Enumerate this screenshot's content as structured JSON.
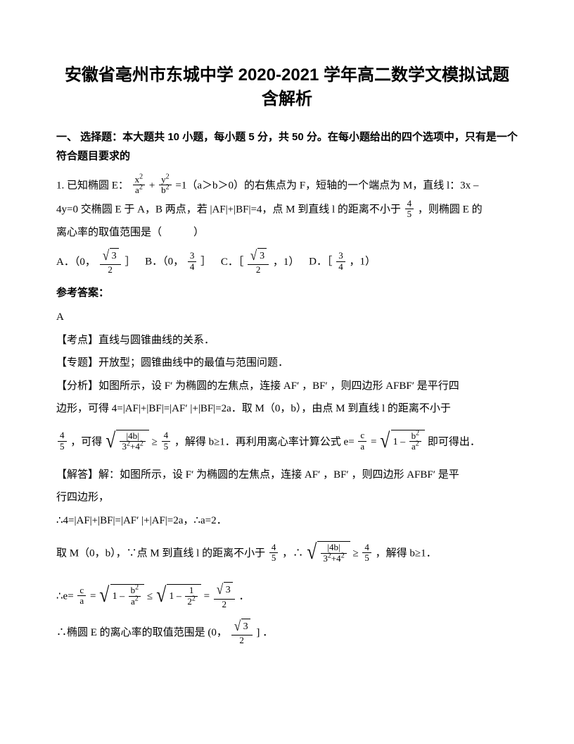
{
  "title": "安徽省亳州市东城中学 2020-2021 学年高二数学文模拟试题含解析",
  "section1": "一、 选择题：本大题共 10 小题，每小题 5 分，共 50 分。在每小题给出的四个选项中，只有是一个符合题目要求的",
  "q1": {
    "line1_a": "1. 已知椭圆 E：",
    "frac1_num": "x",
    "frac1_den": "a",
    "plus": "+",
    "frac2_num": "y",
    "frac2_den": "b",
    "line1_b": "=1（a＞b＞0）的右焦点为 F，短轴的一个端点为 M，直线 l：3x –",
    "line2_a": "4y=0 交椭圆 E 于 A，B 两点，若 |AF|+|BF|=4，点 M 到直线 l 的距离不小于",
    "f45_num": "4",
    "f45_den": "5",
    "line2_b": "，则椭圆 E 的",
    "line3": "离心率的取值范围是（　　　）",
    "optA_a": "A．（0，",
    "optA_b": "］",
    "optB_a": "B．（0，",
    "optB_b": "］",
    "optB_num": "3",
    "optB_den": "4",
    "optC_a": "C．［",
    "optC_b": "，1）",
    "optD_a": "D．［",
    "optD_b": "，1）",
    "optD_num": "3",
    "optD_den": "4",
    "sqrt3_num": "3",
    "opt_den": "2"
  },
  "ans": {
    "head": "参考答案：",
    "letter": "A",
    "kd": "【考点】直线与圆锥曲线的关系．",
    "zt": "【专题】开放型；圆锥曲线中的最值与范围问题．",
    "fx1": "【分析】如图所示，设 F′ 为椭圆的左焦点，连接 AF′ ，BF′ ，则四边形 AFBF′ 是平行四",
    "fx2": "边形，可得 4=|AF|+|BF|=|AF′ |+|BF|=2a．取 M（0，b），由点 M 到直线 l 的距离不小于",
    "fx3_a": "，可得",
    "fx3_b": "，解得 b≥1．再利用离心率计算公式 e=",
    "fx3_c": "即可得出．",
    "rad4b_num": "|4b|",
    "rad4b_den": "3",
    "rad4b_plus": "+4",
    "ge": "≥",
    "jd1": "【解答】解：如图所示，设 F′ 为椭圆的左焦点，连接 AF′ ，BF′ ，则四边形 AFBF′ 是平",
    "jd2": "行四边形，",
    "jd3": "∴4=|AF|+|BF|=|AF′ |+|AF|=2a，∴a=2．",
    "jd4_a": "取 M（0，b），∵点 M 到直线 l 的距离不小于",
    "jd4_b": "，∴",
    "jd4_c": "，解得 b≥1．",
    "jd5_a": "∴e=",
    "jd5_b": "=",
    "jd5_eq": "≤",
    "jd5_dot": "．",
    "one": "1",
    "jd6_a": "∴椭圆 E 的离心率的取值范围是",
    "jd6_b": "．",
    "interval_a": "(0，",
    "interval_b": "]",
    "c": "c",
    "a": "a",
    "b": "b",
    "two": "2",
    "sup2": "2"
  }
}
